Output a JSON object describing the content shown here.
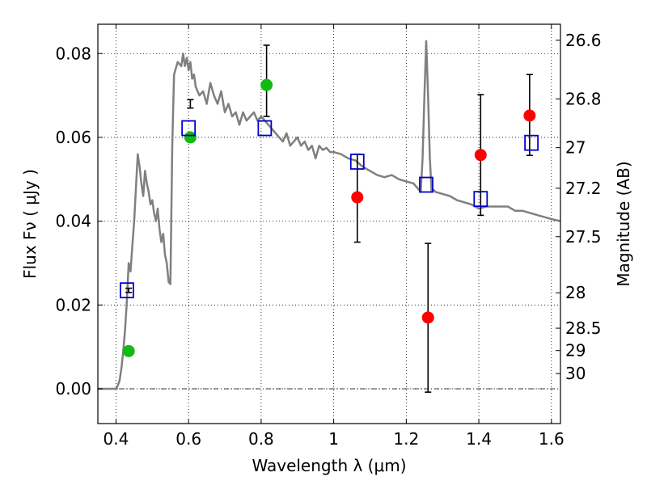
{
  "chart_data": {
    "type": "scatter",
    "xlabel": "Wavelength  λ (μm)",
    "ylabel": "Flux  Fν  ( μJy )",
    "y2label": "Magnitude (AB)",
    "xlim": [
      0.35,
      1.625
    ],
    "ylim": [
      -0.0083,
      0.087
    ],
    "grid": true,
    "x_ticks": [
      {
        "value": 0.4,
        "label": "0.4"
      },
      {
        "value": 0.6,
        "label": "0.6"
      },
      {
        "value": 0.8,
        "label": "0.8"
      },
      {
        "value": 1.0,
        "label": "1"
      },
      {
        "value": 1.2,
        "label": "1.2"
      },
      {
        "value": 1.4,
        "label": "1.4"
      },
      {
        "value": 1.6,
        "label": "1.6"
      }
    ],
    "y_ticks": [
      {
        "value": 0.0,
        "label": "0.00"
      },
      {
        "value": 0.02,
        "label": "0.02"
      },
      {
        "value": 0.04,
        "label": "0.04"
      },
      {
        "value": 0.06,
        "label": "0.06"
      },
      {
        "value": 0.08,
        "label": "0.08"
      }
    ],
    "y2_ticks": [
      {
        "value": 26.6,
        "label": "26.6"
      },
      {
        "value": 26.8,
        "label": "26.8"
      },
      {
        "value": 27.0,
        "label": "27"
      },
      {
        "value": 27.2,
        "label": "27.2"
      },
      {
        "value": 27.5,
        "label": "27.5"
      },
      {
        "value": 28.0,
        "label": "28"
      },
      {
        "value": 28.5,
        "label": "28.5"
      },
      {
        "value": 29.0,
        "label": "29"
      },
      {
        "value": 30.0,
        "label": "30"
      }
    ],
    "model_spectrum": {
      "color": "#808080",
      "x": [
        0.35,
        0.4,
        0.405,
        0.41,
        0.415,
        0.42,
        0.425,
        0.43,
        0.435,
        0.44,
        0.445,
        0.45,
        0.455,
        0.46,
        0.465,
        0.47,
        0.475,
        0.48,
        0.485,
        0.49,
        0.495,
        0.5,
        0.505,
        0.51,
        0.515,
        0.52,
        0.525,
        0.53,
        0.535,
        0.54,
        0.545,
        0.55,
        0.555,
        0.56,
        0.57,
        0.58,
        0.585,
        0.59,
        0.595,
        0.6,
        0.605,
        0.61,
        0.615,
        0.62,
        0.63,
        0.64,
        0.65,
        0.66,
        0.67,
        0.68,
        0.69,
        0.7,
        0.71,
        0.72,
        0.73,
        0.74,
        0.75,
        0.76,
        0.77,
        0.78,
        0.79,
        0.8,
        0.81,
        0.82,
        0.83,
        0.84,
        0.85,
        0.86,
        0.87,
        0.88,
        0.89,
        0.9,
        0.91,
        0.92,
        0.93,
        0.94,
        0.95,
        0.96,
        0.97,
        0.98,
        0.99,
        1.0,
        1.02,
        1.04,
        1.06,
        1.08,
        1.1,
        1.12,
        1.14,
        1.16,
        1.18,
        1.2,
        1.22,
        1.23,
        1.24,
        1.245,
        1.25,
        1.255,
        1.26,
        1.265,
        1.27,
        1.275,
        1.28,
        1.3,
        1.32,
        1.34,
        1.36,
        1.38,
        1.4,
        1.42,
        1.44,
        1.46,
        1.48,
        1.5,
        1.52,
        1.54,
        1.56,
        1.58,
        1.6,
        1.625
      ],
      "y": [
        0.0,
        0.0,
        0.0008,
        0.002,
        0.005,
        0.009,
        0.014,
        0.021,
        0.03,
        0.028,
        0.034,
        0.04,
        0.048,
        0.056,
        0.053,
        0.049,
        0.046,
        0.052,
        0.049,
        0.047,
        0.044,
        0.045,
        0.042,
        0.04,
        0.043,
        0.038,
        0.035,
        0.037,
        0.032,
        0.03,
        0.0255,
        0.025,
        0.058,
        0.075,
        0.078,
        0.077,
        0.08,
        0.077,
        0.079,
        0.076,
        0.078,
        0.074,
        0.075,
        0.072,
        0.07,
        0.071,
        0.068,
        0.073,
        0.07,
        0.068,
        0.071,
        0.066,
        0.068,
        0.065,
        0.066,
        0.063,
        0.066,
        0.064,
        0.065,
        0.066,
        0.064,
        0.065,
        0.064,
        0.063,
        0.062,
        0.061,
        0.06,
        0.059,
        0.061,
        0.058,
        0.059,
        0.06,
        0.058,
        0.059,
        0.057,
        0.058,
        0.055,
        0.058,
        0.057,
        0.0575,
        0.0565,
        0.0565,
        0.056,
        0.055,
        0.0545,
        0.053,
        0.052,
        0.051,
        0.0505,
        0.051,
        0.05,
        0.0495,
        0.049,
        0.048,
        0.047,
        0.055,
        0.07,
        0.083,
        0.07,
        0.055,
        0.047,
        0.0475,
        0.047,
        0.0465,
        0.046,
        0.045,
        0.0445,
        0.044,
        0.043,
        0.0435,
        0.0435,
        0.0435,
        0.0435,
        0.0425,
        0.0425,
        0.042,
        0.0415,
        0.041,
        0.0405,
        0.04
      ]
    },
    "series": [
      {
        "marker": "circle",
        "color": "#11bb11",
        "x": [
          0.435,
          0.605,
          0.815
        ],
        "y": [
          0.009,
          0.06,
          0.0725
        ],
        "yerr_low": [
          0.023,
          0.069,
          0.065
        ],
        "yerr_high": [
          0.024,
          0.067,
          0.082
        ]
      },
      {
        "marker": "circle",
        "color": "#ff0000",
        "x": [
          1.065,
          1.26,
          1.405,
          1.54
        ],
        "y": [
          0.0457,
          0.017,
          0.0558,
          0.0652
        ],
        "yerr_low": [
          0.035,
          -0.0008,
          0.0414,
          0.0557
        ],
        "yerr_high": [
          0.056,
          0.0347,
          0.0702,
          0.075
        ]
      },
      {
        "marker": "open-square",
        "color": "#0000cc",
        "x": [
          0.43,
          0.6,
          0.81,
          1.065,
          1.255,
          1.405,
          1.545
        ],
        "y": [
          0.0235,
          0.0622,
          0.0622,
          0.0542,
          0.0487,
          0.0453,
          0.0587
        ]
      }
    ]
  }
}
